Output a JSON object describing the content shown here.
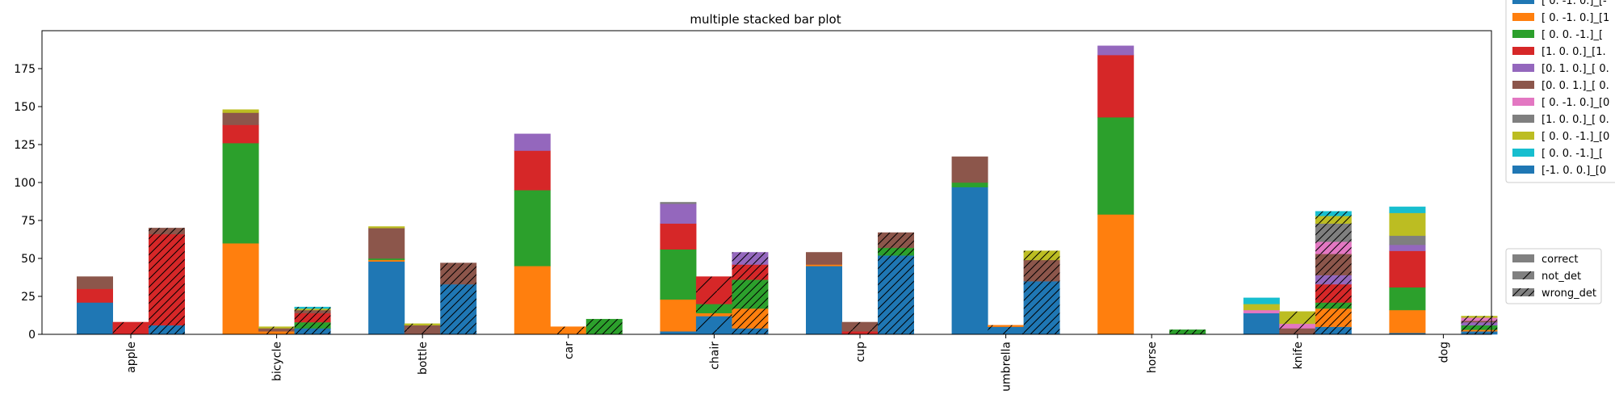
{
  "chart_data": {
    "type": "bar",
    "title": "multiple stacked bar plot",
    "xlabel": "",
    "ylabel": "",
    "ylim": [
      0,
      200
    ],
    "yticks": [
      0,
      25,
      50,
      75,
      100,
      125,
      150,
      175
    ],
    "categories": [
      "apple",
      "bicycle",
      "bottle",
      "car",
      "chair",
      "cup",
      "umbrella",
      "horse",
      "knife",
      "dog"
    ],
    "groups": [
      "correct",
      "not_det",
      "wrong_det"
    ],
    "colors": [
      "#1f77b4",
      "#ff7f0e",
      "#2ca02c",
      "#d62728",
      "#9467bd",
      "#8c564b",
      "#e377c2",
      "#7f7f7f",
      "#bcbd22",
      "#17becf",
      "#1f77b4"
    ],
    "series_legend": [
      "[ 0. -1.  0.]_[-",
      "[ 0. -1.  0.]_[1",
      "[ 0.  0. -1.]_[",
      "[1. 0. 0.]_[1.",
      "[0. 1. 0.]_[ 0.",
      "[0. 0. 1.]_[ 0.",
      "[ 0. -1.  0.]_[0",
      "[1. 0. 0.]_[ 0.",
      "[ 0.  0. -1.]_[0",
      "[ 0.  0. -1.]_[",
      "[-1.  0.  0.]_[0"
    ],
    "group_legend": [
      "correct",
      "not_det",
      "wrong_det"
    ],
    "data": {
      "correct": [
        [
          21,
          0,
          0,
          9,
          0,
          8,
          0,
          0,
          0,
          0,
          0
        ],
        [
          0,
          60,
          66,
          12,
          0,
          8,
          0,
          0,
          2,
          0,
          0
        ],
        [
          48,
          1,
          1,
          0,
          0,
          20,
          0,
          0,
          1,
          0,
          0
        ],
        [
          0,
          45,
          50,
          26,
          11,
          0,
          0,
          0,
          0,
          0,
          0
        ],
        [
          2,
          21,
          33,
          17,
          13,
          0,
          0,
          1,
          0,
          0,
          0
        ],
        [
          45,
          1,
          0,
          0,
          0,
          8,
          0,
          0,
          0,
          0,
          0
        ],
        [
          97,
          0,
          3,
          0,
          0,
          17,
          0,
          0,
          0,
          0,
          0
        ],
        [
          0,
          79,
          64,
          41,
          6,
          0,
          0,
          0,
          0,
          0,
          0
        ],
        [
          14,
          0,
          0,
          0,
          0,
          0,
          2,
          0,
          4,
          4,
          0
        ],
        [
          1,
          15,
          15,
          24,
          4,
          0,
          0,
          6,
          15,
          4,
          0
        ]
      ],
      "not_det": [
        [
          0,
          0,
          0,
          8,
          0,
          0,
          0,
          0,
          0,
          0,
          0
        ],
        [
          0,
          2,
          0,
          0,
          0,
          2,
          0,
          0,
          1,
          0,
          0
        ],
        [
          0,
          0,
          0,
          0,
          0,
          6,
          0,
          0,
          1,
          0,
          0
        ],
        [
          0,
          5,
          0,
          0,
          0,
          0,
          0,
          0,
          0,
          0,
          0
        ],
        [
          12,
          2,
          6,
          18,
          0,
          0,
          0,
          0,
          0,
          0,
          0
        ],
        [
          0,
          0,
          0,
          2,
          0,
          6,
          0,
          0,
          0,
          0,
          0
        ],
        [
          5,
          1,
          0,
          0,
          0,
          0,
          0,
          0,
          0,
          0,
          0
        ],
        [
          0,
          0,
          0,
          0,
          0,
          0,
          0,
          0,
          0,
          0,
          0
        ],
        [
          0,
          0,
          0,
          0,
          0,
          4,
          3,
          0,
          8,
          0,
          0
        ],
        [
          0,
          0,
          0,
          0,
          0,
          0,
          0,
          0,
          0,
          0,
          0
        ]
      ],
      "wrong_det": [
        [
          6,
          0,
          0,
          60,
          0,
          4,
          0,
          0,
          0,
          0,
          0
        ],
        [
          4,
          0,
          4,
          6,
          0,
          2,
          0,
          0,
          1,
          1,
          0
        ],
        [
          33,
          0,
          0,
          0,
          0,
          14,
          0,
          0,
          0,
          0,
          0
        ],
        [
          0,
          0,
          10,
          0,
          0,
          0,
          0,
          0,
          0,
          0,
          0
        ],
        [
          4,
          13,
          19,
          10,
          8,
          0,
          0,
          0,
          0,
          0,
          0
        ],
        [
          52,
          0,
          5,
          0,
          0,
          10,
          0,
          0,
          0,
          0,
          0
        ],
        [
          35,
          0,
          0,
          0,
          0,
          14,
          0,
          0,
          6,
          0,
          0
        ],
        [
          0,
          0,
          3,
          0,
          0,
          0,
          0,
          0,
          0,
          0,
          0
        ],
        [
          5,
          12,
          4,
          12,
          6,
          14,
          8,
          12,
          5,
          3,
          0
        ],
        [
          2,
          1,
          3,
          0,
          2,
          1,
          2,
          0,
          1,
          0,
          0
        ]
      ]
    },
    "grid": false,
    "legend_position": "outside-right"
  }
}
